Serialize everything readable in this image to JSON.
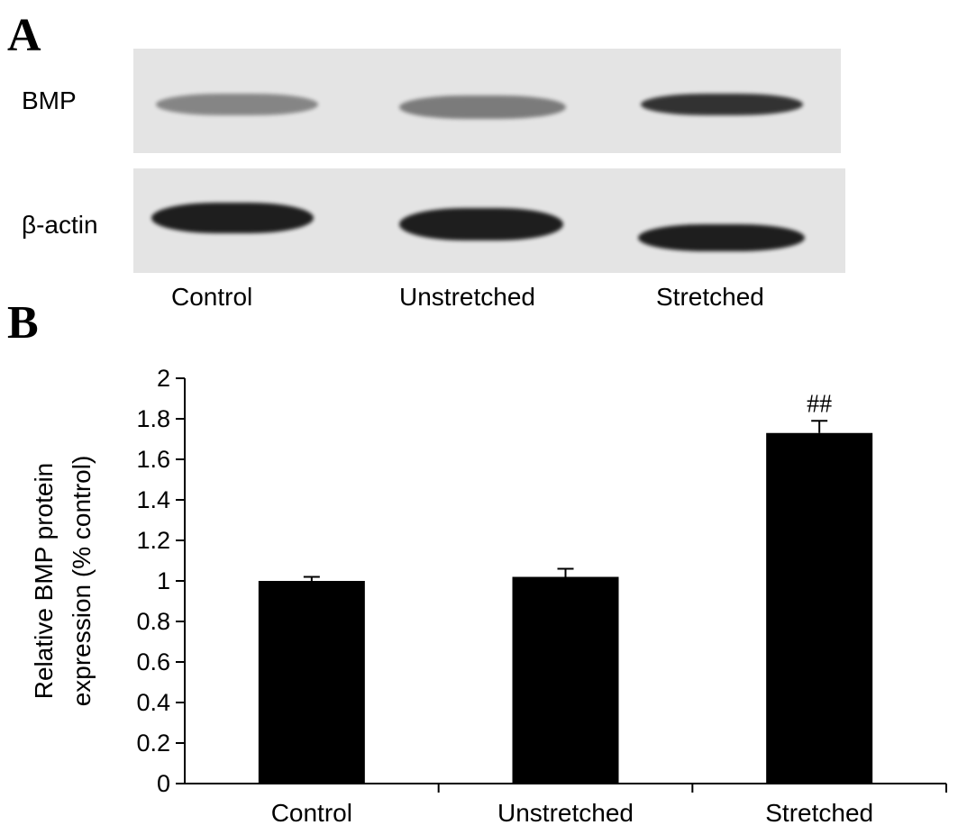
{
  "panel_a": {
    "letter": "A",
    "row_labels": {
      "bmp": "BMP",
      "actin": "β-actin"
    },
    "lanes": [
      "Control",
      "Unstretched",
      "Stretched"
    ],
    "bands": {
      "bmp": [
        {
          "intensity": 0.45
        },
        {
          "intensity": 0.5
        },
        {
          "intensity": 0.85
        }
      ],
      "actin": [
        {
          "intensity": 0.95
        },
        {
          "intensity": 0.95
        },
        {
          "intensity": 0.95
        }
      ]
    },
    "band_color": "#141414",
    "panel_bg": "#e4e4e4"
  },
  "panel_b": {
    "letter": "B"
  },
  "chart_data": {
    "type": "bar",
    "categories": [
      "Control",
      "Unstretched",
      "Stretched"
    ],
    "values": [
      1.0,
      1.02,
      1.73
    ],
    "errors": [
      0.02,
      0.04,
      0.06
    ],
    "annotations": [
      "",
      "",
      "##"
    ],
    "ylabel_lines": [
      "Relative BMP protein",
      "expression (% control)"
    ],
    "xlabel": "",
    "ylim": [
      0,
      2
    ],
    "yticks": [
      0,
      0.2,
      0.4,
      0.6,
      0.8,
      1,
      1.2,
      1.4,
      1.6,
      1.8,
      2
    ],
    "ytick_labels": [
      "0",
      "0.2",
      "0.4",
      "0.6",
      "0.8",
      "1",
      "1.2",
      "1.4",
      "1.6",
      "1.8",
      "2"
    ],
    "grid": false,
    "bar_color": "#000000"
  }
}
